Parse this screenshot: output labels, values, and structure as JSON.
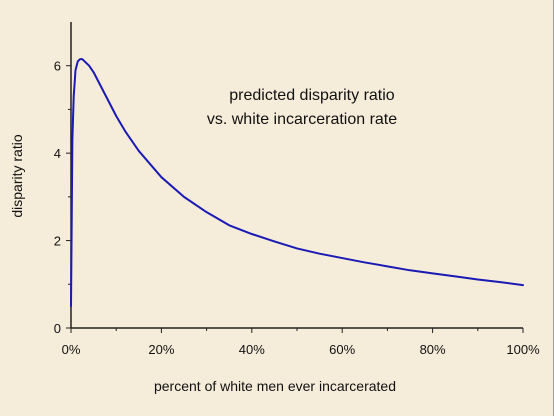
{
  "chart_data": {
    "type": "line",
    "title": "",
    "annotation": [
      "predicted disparity ratio",
      "vs. white incarceration rate"
    ],
    "xlabel": "percent of white men ever incarcerated",
    "ylabel": "disparity ratio",
    "xlim": [
      0,
      100
    ],
    "ylim": [
      0,
      7
    ],
    "x_ticks": [
      0,
      20,
      40,
      60,
      80,
      100
    ],
    "x_tick_labels": [
      "0%",
      "20%",
      "40%",
      "60%",
      "80%",
      "100%"
    ],
    "y_ticks": [
      0,
      2,
      4,
      6
    ],
    "y_tick_labels": [
      "0",
      "2",
      "4",
      "6"
    ],
    "grid": false,
    "line_color": "#1a1ab4",
    "series": [
      {
        "x": [
          0,
          0.3,
          0.6,
          1,
          1.5,
          2,
          2.5,
          3,
          4,
          5,
          6,
          8,
          10,
          12,
          15,
          20,
          25,
          30,
          35,
          40,
          45,
          50,
          55,
          60,
          65,
          70,
          75,
          80,
          85,
          90,
          95,
          100
        ],
        "y": [
          0.5,
          4.3,
          5.3,
          5.9,
          6.1,
          6.15,
          6.15,
          6.1,
          6.0,
          5.85,
          5.65,
          5.25,
          4.85,
          4.5,
          4.05,
          3.45,
          3.0,
          2.65,
          2.35,
          2.15,
          1.98,
          1.82,
          1.7,
          1.6,
          1.5,
          1.41,
          1.32,
          1.25,
          1.18,
          1.11,
          1.05,
          0.98
        ]
      }
    ]
  }
}
